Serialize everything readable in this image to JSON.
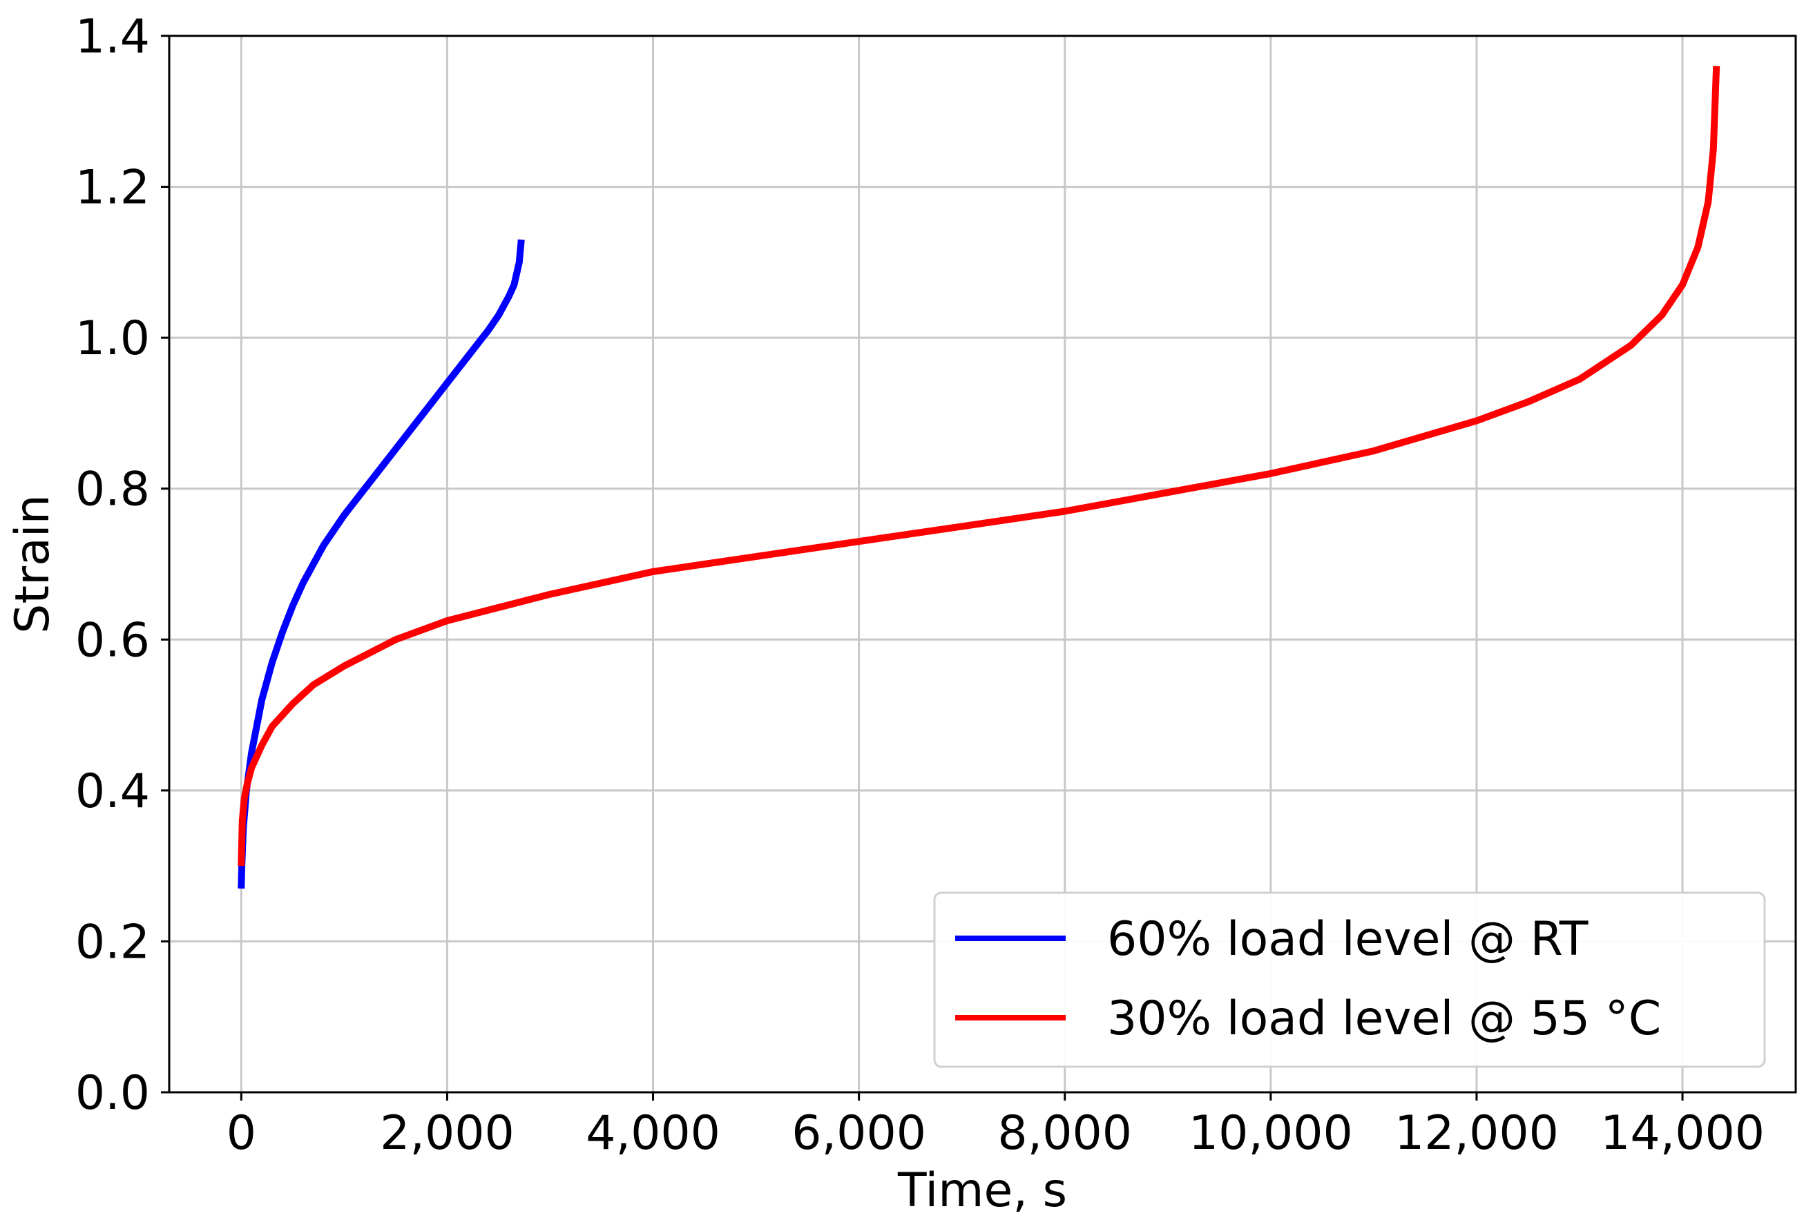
{
  "chart_data": {
    "type": "line",
    "title": "",
    "xlabel": "Time, s",
    "ylabel": "Strain",
    "xlim": [
      -700,
      15100
    ],
    "ylim": [
      0.0,
      1.4
    ],
    "xticks": [
      0,
      2000,
      4000,
      6000,
      8000,
      10000,
      12000,
      14000
    ],
    "xtick_labels": [
      "0",
      "2,000",
      "4,000",
      "6,000",
      "8,000",
      "10,000",
      "12,000",
      "14,000"
    ],
    "yticks": [
      0.0,
      0.2,
      0.4,
      0.6,
      0.8,
      1.0,
      1.2,
      1.4
    ],
    "ytick_labels": [
      "0.0",
      "0.2",
      "0.4",
      "0.6",
      "0.8",
      "1.0",
      "1.2",
      "1.4"
    ],
    "grid": true,
    "legend_position": "bottom-right",
    "series": [
      {
        "name": "60% load level @ RT",
        "color": "#0000ff",
        "x": [
          0,
          5,
          20,
          50,
          100,
          200,
          300,
          400,
          500,
          600,
          700,
          800,
          900,
          1000,
          1200,
          1400,
          1600,
          1800,
          2000,
          2200,
          2400,
          2500,
          2600,
          2650,
          2700,
          2720
        ],
        "y": [
          0.27,
          0.3,
          0.35,
          0.4,
          0.45,
          0.52,
          0.57,
          0.61,
          0.645,
          0.675,
          0.7,
          0.725,
          0.745,
          0.765,
          0.8,
          0.835,
          0.87,
          0.905,
          0.94,
          0.975,
          1.01,
          1.03,
          1.055,
          1.07,
          1.1,
          1.13
        ]
      },
      {
        "name": "30% load level @ 55 °C",
        "color": "#ff0000",
        "x": [
          0,
          10,
          30,
          60,
          100,
          200,
          300,
          500,
          700,
          1000,
          1500,
          2000,
          3000,
          4000,
          5000,
          6000,
          7000,
          8000,
          9000,
          10000,
          11000,
          12000,
          12500,
          13000,
          13500,
          13800,
          14000,
          14150,
          14250,
          14300,
          14330
        ],
        "y": [
          0.3,
          0.36,
          0.39,
          0.41,
          0.43,
          0.46,
          0.485,
          0.515,
          0.54,
          0.565,
          0.6,
          0.625,
          0.66,
          0.69,
          0.71,
          0.73,
          0.75,
          0.77,
          0.795,
          0.82,
          0.85,
          0.89,
          0.915,
          0.945,
          0.99,
          1.03,
          1.07,
          1.12,
          1.18,
          1.25,
          1.36
        ]
      }
    ]
  }
}
